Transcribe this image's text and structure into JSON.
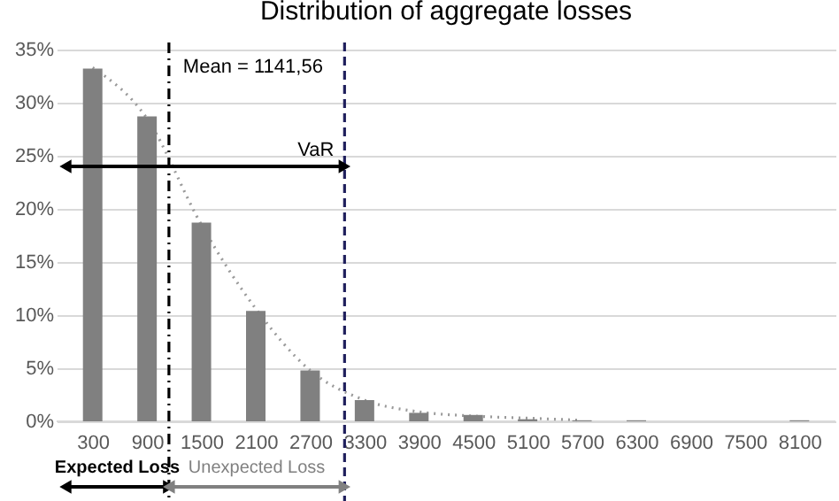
{
  "chart_data": {
    "type": "bar",
    "title": "Distribution of aggregate losses",
    "x": [
      300,
      900,
      1500,
      2100,
      2700,
      3300,
      3900,
      4500,
      5100,
      5700,
      6300,
      6900,
      7500,
      8100
    ],
    "xlim": [
      0,
      8400
    ],
    "xticks": [
      300,
      900,
      1500,
      2100,
      2700,
      3300,
      3900,
      4500,
      5100,
      5700,
      6300,
      6900,
      7500,
      8100
    ],
    "ylim": [
      0,
      35
    ],
    "yticks": [
      {
        "value": 0,
        "label": "0%"
      },
      {
        "value": 5,
        "label": "5%"
      },
      {
        "value": 10,
        "label": "10%"
      },
      {
        "value": 15,
        "label": "15%"
      },
      {
        "value": 20,
        "label": "20%"
      },
      {
        "value": 25,
        "label": "25%"
      },
      {
        "value": 30,
        "label": "30%"
      },
      {
        "value": 35,
        "label": "35%"
      }
    ],
    "series": [
      {
        "color": "#808080",
        "values": [
          33.2,
          28.7,
          18.7,
          10.4,
          4.8,
          2.0,
          0.8,
          0.6,
          0.2,
          0.1,
          0.1,
          0.0,
          0.0,
          0.1
        ]
      },
      {
        "type": "line",
        "color": "#9a9a9a",
        "line_style": "dotted",
        "x": [
          300,
          900,
          1500,
          2100,
          2700,
          3300,
          3900,
          4500,
          5100,
          5700
        ],
        "values": [
          33.3,
          28.5,
          18.5,
          10.6,
          4.8,
          2.0,
          0.9,
          0.5,
          0.3,
          0.1
        ]
      }
    ],
    "ref_lines": [
      {
        "axis": "x",
        "value": 1141.56,
        "label": "Mean = 1141,56",
        "color": "#000000",
        "line_style": "dashdot"
      },
      {
        "axis": "x",
        "value": 3080,
        "label": null,
        "color": "#1f1f5c",
        "line_style": "dashed"
      }
    ],
    "annotations": [
      {
        "text": "VaR",
        "x": 3080,
        "y": 24
      },
      "Expected Loss",
      "Unexpected Loss"
    ],
    "grid": "y"
  }
}
